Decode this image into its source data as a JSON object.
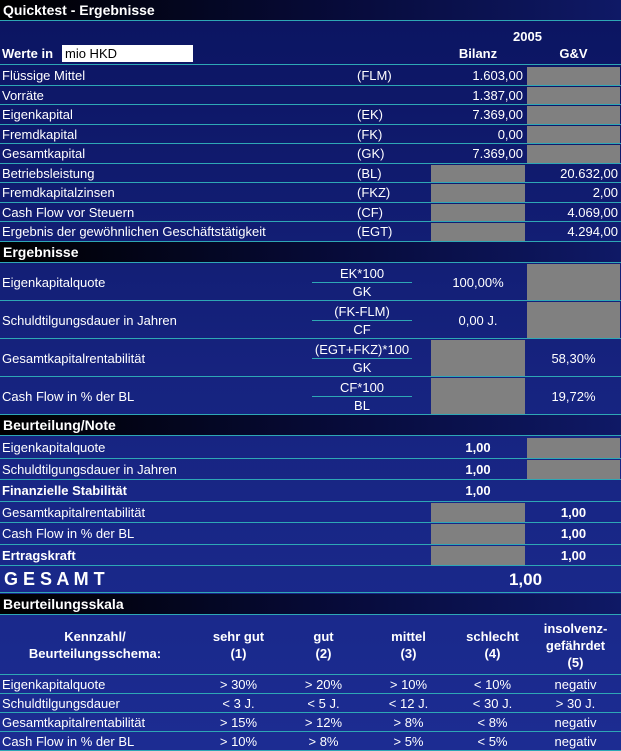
{
  "header": {
    "title": "Quicktest - Ergebnisse",
    "year": "2005",
    "unit_label": "Werte in",
    "unit_value": "mio HKD",
    "columns": [
      "Bilanz",
      "G&V"
    ]
  },
  "inputs": [
    {
      "label": "Flüssige Mittel",
      "code": "(FLM)",
      "bilanz": "1.603,00",
      "guv": null
    },
    {
      "label": "Vorräte",
      "bilanz": "1.387,00",
      "guv": null
    },
    {
      "label": "Eigenkapital",
      "code": "(EK)",
      "bilanz": "7.369,00",
      "guv": null
    },
    {
      "label": "Fremdkapital",
      "code": "(FK)",
      "bilanz": "0,00",
      "guv": null
    },
    {
      "label": "Gesamtkapital",
      "code": "(GK)",
      "bilanz": "7.369,00",
      "guv": null
    },
    {
      "label": "Betriebsleistung",
      "code": "(BL)",
      "bilanz": null,
      "guv": "20.632,00"
    },
    {
      "label": "Fremdkapitalzinsen",
      "code": "(FKZ)",
      "bilanz": null,
      "guv": "2,00"
    },
    {
      "label": "Cash Flow vor Steuern",
      "code": "(CF)",
      "bilanz": null,
      "guv": "4.069,00"
    },
    {
      "label": "Ergebnis der gewöhnlichen Geschäftstätigkeit",
      "code": "(EGT)",
      "bilanz": null,
      "guv": "4.294,00"
    }
  ],
  "ratios": {
    "title": "Ergebnisse",
    "rows": [
      {
        "label": "Eigenkapitalquote",
        "numerator": "EK*100",
        "denominator": "GK",
        "bilanz": "100,00%",
        "guv": null
      },
      {
        "label": "Schuldtilgungsdauer in Jahren",
        "numerator": "(FK-FLM)",
        "denominator": "CF",
        "bilanz": "0,00 J.",
        "guv": null
      },
      {
        "label": "Gesamtkapitalrentabilität",
        "numerator": "(EGT+FKZ)*100",
        "denominator": "GK",
        "bilanz": null,
        "guv": "58,30%"
      },
      {
        "label": "Cash Flow in % der BL",
        "numerator": "CF*100",
        "denominator": "BL",
        "bilanz": null,
        "guv": "19,72%"
      }
    ]
  },
  "rating": {
    "title": "Beurteilung/Note",
    "rows": [
      {
        "label": "Eigenkapitalquote",
        "bold": false,
        "bilanz": "1,00",
        "guv": null
      },
      {
        "label": "Schuldtilgungsdauer in Jahren",
        "bold": false,
        "bilanz": "1,00",
        "guv": null
      },
      {
        "label": "Finanzielle Stabilität",
        "bold": true,
        "bilanz": "1,00"
      },
      {
        "label": "Gesamtkapitalrentabilität",
        "bold": false,
        "bilanz": null,
        "guv": "1,00"
      },
      {
        "label": "Cash Flow in % der BL",
        "bold": false,
        "bilanz": null,
        "guv": "1,00"
      },
      {
        "label": "Ertragskraft",
        "bold": true,
        "bilanz": null,
        "guv": "1,00"
      }
    ]
  },
  "total": {
    "label": "G E S A M T",
    "value": "1,00"
  },
  "scale": {
    "title": "Beurteilungsskala",
    "header": [
      [
        "Kennzahl/",
        "Beurteilungsschema:"
      ],
      [
        "sehr gut",
        "(1)"
      ],
      [
        "gut",
        "(2)"
      ],
      [
        "mittel",
        "(3)"
      ],
      [
        "schlecht",
        "(4)"
      ],
      [
        "insolvenz-",
        "gefährdet",
        "(5)"
      ]
    ],
    "rows": [
      [
        "Eigenkapitalquote",
        "> 30%",
        "> 20%",
        "> 10%",
        "< 10%",
        "negativ"
      ],
      [
        "Schuldtilgungsdauer",
        "< 3 J.",
        "< 5 J.",
        "< 12 J.",
        "< 30 J.",
        "> 30 J."
      ],
      [
        "Gesamtkapitalrentabilität",
        "> 15%",
        "> 12%",
        "> 8%",
        "< 8%",
        "negativ"
      ],
      [
        "Cash Flow in % der BL",
        "> 10%",
        "> 8%",
        "> 5%",
        "< 5%",
        "negativ"
      ]
    ]
  }
}
